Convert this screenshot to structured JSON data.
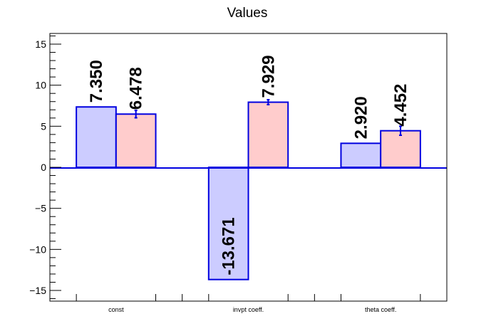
{
  "chart_data": {
    "type": "bar",
    "title": "Values",
    "categories": [
      "const",
      "invpt coeff.",
      "theta coeff."
    ],
    "series": [
      {
        "values": [
          7.35,
          -13.671,
          2.92
        ],
        "labels": [
          "7.350",
          "-13.671",
          "2.920"
        ],
        "fill": "#ccccff",
        "stroke": "#0000e0",
        "errors": [
          0,
          0,
          0
        ]
      },
      {
        "values": [
          6.478,
          7.929,
          4.452
        ],
        "labels": [
          "6.478",
          "7.929",
          "4.452"
        ],
        "fill": "#ffcccc",
        "stroke": "#0000e0",
        "errors": [
          0.45,
          0.3,
          0.55
        ]
      }
    ],
    "ylim": [
      -16.3,
      16.3
    ],
    "yticks": [
      -15,
      -10,
      -5,
      0,
      5,
      10,
      15
    ],
    "ytick_labels": [
      "−15",
      "−10",
      "−5",
      "0",
      "5",
      "10",
      "15"
    ],
    "grid": false,
    "xlabel": "",
    "ylabel": ""
  }
}
